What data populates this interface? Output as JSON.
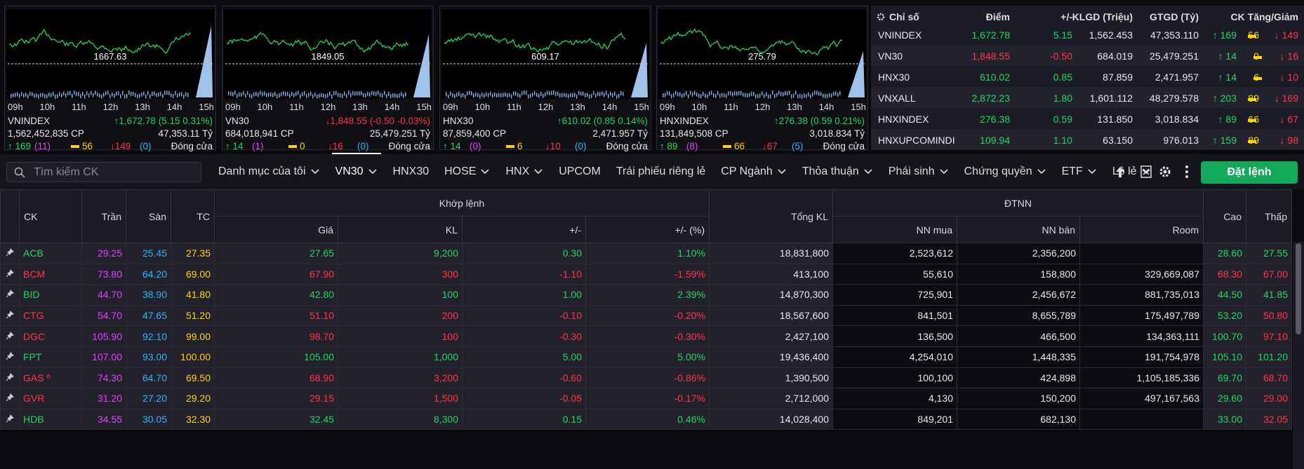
{
  "index_cards": [
    {
      "name": "VNINDEX",
      "chart_ref": "1667.63",
      "change": "↑1,672.78 (5.15 0.31%)",
      "volume": "1,562,452,835 CP",
      "value": "47,353.11 Tỷ",
      "up": "↑ 169",
      "ceiling": "(11)",
      "flat": "56",
      "down": "↓149",
      "floor": "(0)",
      "status": "Đóng cửa"
    },
    {
      "name": "VN30",
      "chart_ref": "1849.05",
      "change": "↓1,848.55 (-0.50 -0.03%)",
      "volume": "684,018,941 CP",
      "value": "25,479.251 Tỷ",
      "up": "↑ 14",
      "ceiling": "(1)",
      "flat": "0",
      "down": "↓16",
      "floor": "(0)",
      "status": "Đóng cửa"
    },
    {
      "name": "HNX30",
      "chart_ref": "609.17",
      "change": "↑610.02 (0.85 0.14%)",
      "volume": "87,859,400 CP",
      "value": "2,471.957 Tỷ",
      "up": "↑ 14",
      "ceiling": "(0)",
      "flat": "6",
      "down": "↓10",
      "floor": "(0)",
      "status": "Đóng cửa"
    },
    {
      "name": "HNXINDEX",
      "chart_ref": "275.79",
      "change": "↑276.38 (0.59 0.21%)",
      "volume": "131,849,508 CP",
      "value": "3,018.834 Tỷ",
      "up": "↑ 89",
      "ceiling": "(8)",
      "flat": "66",
      "down": "↓67",
      "floor": "(5)",
      "status": "Đóng cửa"
    }
  ],
  "chart_hours": [
    "09h",
    "10h",
    "11h",
    "12h",
    "13h",
    "14h",
    "15h"
  ],
  "index_table": {
    "headers": [
      "Chỉ số",
      "Điểm",
      "+/-",
      "KLGD (Triệu)",
      "GTGD (Tỷ)",
      "CK Tăng/Giảm"
    ],
    "rows": [
      [
        "VNINDEX",
        "1,672.78",
        "5.15",
        "1,562.453",
        "47,353.110",
        "↑ 169",
        "56",
        "↓ 149"
      ],
      [
        "VN30",
        "1,848.55",
        "-0.50",
        "684.019",
        "25,479.251",
        "↑ 14",
        "0",
        "↓ 16"
      ],
      [
        "HNX30",
        "610.02",
        "0.85",
        "87.859",
        "2,471.957",
        "↑ 14",
        "6",
        "↓ 10"
      ],
      [
        "VNXALL",
        "2,872.23",
        "1.80",
        "1,601.112",
        "48,279.578",
        "↑ 203",
        "89",
        "↓ 169"
      ],
      [
        "HNXINDEX",
        "276.38",
        "0.59",
        "131.850",
        "3,018.834",
        "↑ 89",
        "66",
        "↓ 67"
      ],
      [
        "HNXUPCOMINDI",
        "109.94",
        "1.10",
        "63.150",
        "976.013",
        "↑ 159",
        "89",
        "↓ 98"
      ]
    ]
  },
  "toolbar": {
    "search_placeholder": "Tìm kiếm CK",
    "tabs": [
      {
        "label": "Danh mục của tôi",
        "dropdown": true
      },
      {
        "label": "VN30",
        "dropdown": true
      },
      {
        "label": "HNX30",
        "dropdown": false
      },
      {
        "label": "HOSE",
        "dropdown": true
      },
      {
        "label": "HNX",
        "dropdown": true
      },
      {
        "label": "UPCOM",
        "dropdown": false
      },
      {
        "label": "Trái phiếu riêng lẻ",
        "dropdown": false
      },
      {
        "label": "CP Ngành",
        "dropdown": true
      },
      {
        "label": "Thỏa thuận",
        "dropdown": true
      },
      {
        "label": "Phái sinh",
        "dropdown": true
      },
      {
        "label": "Chứng quyền",
        "dropdown": true
      },
      {
        "label": "ETF",
        "dropdown": true
      },
      {
        "label": "Lô lẻ",
        "dropdown": true
      }
    ],
    "active_tab": 1,
    "order_button": "Đặt lệnh"
  },
  "board": {
    "group_match": "Khớp lệnh",
    "group_foreign": "ĐTNN",
    "columns": [
      "CK",
      "Trần",
      "Sàn",
      "TC",
      "Giá",
      "KL",
      "+/-",
      "+/- (%)",
      "Tổng KL",
      "NN mua",
      "NN bán",
      "Room",
      "Cao",
      "Thấp"
    ],
    "rows": [
      [
        "ACB",
        "29.25",
        "25.45",
        "27.35",
        "27.65",
        "9,200",
        "0.30",
        "1.10%",
        "18,831,800",
        "2,523,612",
        "2,356,200",
        null,
        "28.60",
        "27.55"
      ],
      [
        "BCM",
        "73.80",
        "64.20",
        "69.00",
        "67.90",
        "300",
        "-1.10",
        "-1.59%",
        "413,100",
        "55,610",
        "158,800",
        "329,669,087",
        "68.30",
        "67.00"
      ],
      [
        "BID",
        "44.70",
        "38.90",
        "41.80",
        "42.80",
        "100",
        "1.00",
        "2.39%",
        "14,870,300",
        "725,901",
        "2,456,672",
        "881,735,013",
        "44.50",
        "41.85"
      ],
      [
        "CTG",
        "54.70",
        "47.65",
        "51.20",
        "51.10",
        "200",
        "-0.10",
        "-0.20%",
        "18,567,600",
        "841,501",
        "8,655,789",
        "175,497,789",
        "53.20",
        "50.80"
      ],
      [
        "DGC",
        "105.90",
        "92.10",
        "99.00",
        "98.70",
        "100",
        "-0.30",
        "-0.30%",
        "2,427,100",
        "136,500",
        "466,500",
        "134,363,111",
        "100.70",
        "97.10"
      ],
      [
        "FPT",
        "107.00",
        "93.00",
        "100.00",
        "105.00",
        "1,000",
        "5.00",
        "5.00%",
        "19,436,400",
        "4,254,010",
        "1,448,335",
        "191,754,978",
        "105.10",
        "101.20"
      ],
      [
        "GAS º",
        "74.30",
        "64.70",
        "69.50",
        "68.90",
        "3,200",
        "-0.60",
        "-0.86%",
        "1,390,500",
        "100,100",
        "424,898",
        "1,105,185,336",
        "69.70",
        "68.70"
      ],
      [
        "GVR",
        "31.20",
        "27.20",
        "29.20",
        "29.15",
        "1,500",
        "-0.05",
        "-0.17%",
        "2,712,000",
        "4,130",
        "150,200",
        "497,167,563",
        "29.60",
        "29.00"
      ],
      [
        "HDB",
        "34.55",
        "30.05",
        "32.30",
        "32.45",
        "8,300",
        "0.15",
        "0.46%",
        "14,028,400",
        "849,201",
        "682,130",
        null,
        "33.00",
        "32.05"
      ]
    ]
  }
}
